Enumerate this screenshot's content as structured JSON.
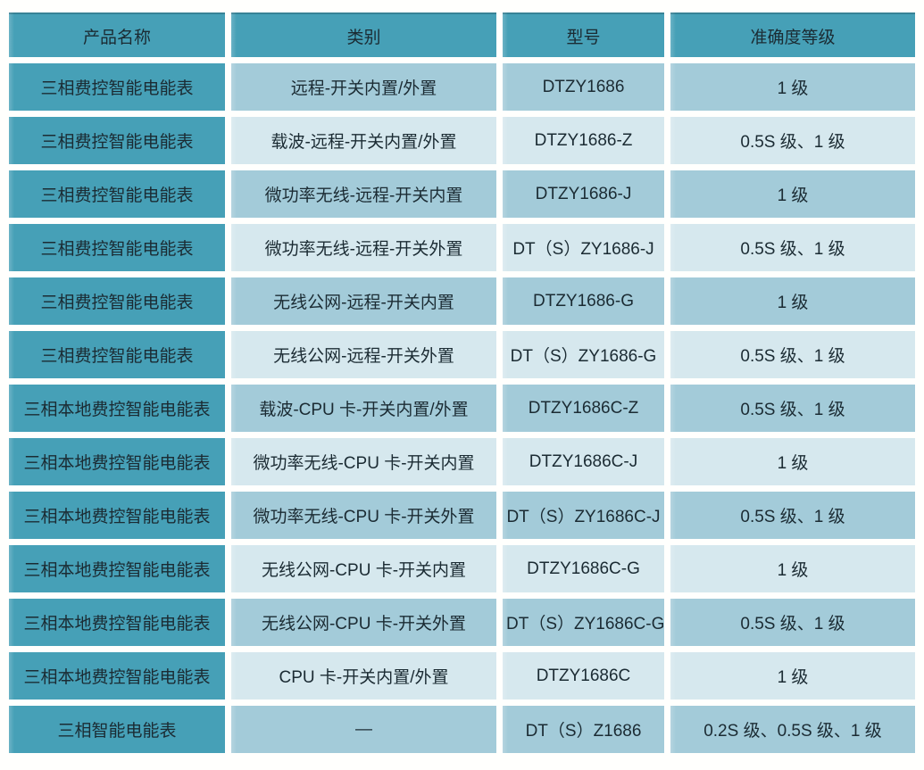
{
  "table": {
    "columns": [
      "产品名称",
      "类别",
      "型号",
      "准确度等级"
    ],
    "colors": {
      "header_bg": "#46a0b7",
      "product_column_bg": "#46a0b7",
      "row_medium_bg": "#a3cbd9",
      "row_light_bg": "#d6e8ee",
      "text": "#1b2b33",
      "gap": "#ffffff"
    },
    "rows": [
      {
        "product": "三相费控智能电能表",
        "category": "远程-开关内置/外置",
        "model": "DTZY1686",
        "accuracy": "1 级",
        "shade": "medium"
      },
      {
        "product": "三相费控智能电能表",
        "category": "载波-远程-开关内置/外置",
        "model": "DTZY1686-Z",
        "accuracy": "0.5S 级、1 级",
        "shade": "light"
      },
      {
        "product": "三相费控智能电能表",
        "category": "微功率无线-远程-开关内置",
        "model": "DTZY1686-J",
        "accuracy": "1 级",
        "shade": "medium"
      },
      {
        "product": "三相费控智能电能表",
        "category": "微功率无线-远程-开关外置",
        "model": "DT（S）ZY1686-J",
        "accuracy": "0.5S 级、1 级",
        "shade": "light"
      },
      {
        "product": "三相费控智能电能表",
        "category": "无线公网-远程-开关内置",
        "model": "DTZY1686-G",
        "accuracy": "1 级",
        "shade": "medium"
      },
      {
        "product": "三相费控智能电能表",
        "category": "无线公网-远程-开关外置",
        "model": "DT（S）ZY1686-G",
        "accuracy": "0.5S 级、1 级",
        "shade": "light"
      },
      {
        "product": "三相本地费控智能电能表",
        "category": "载波-CPU 卡-开关内置/外置",
        "model": "DTZY1686C-Z",
        "accuracy": "0.5S 级、1 级",
        "shade": "medium"
      },
      {
        "product": "三相本地费控智能电能表",
        "category": "微功率无线-CPU 卡-开关内置",
        "model": "DTZY1686C-J",
        "accuracy": "1 级",
        "shade": "light"
      },
      {
        "product": "三相本地费控智能电能表",
        "category": "微功率无线-CPU 卡-开关外置",
        "model": "DT（S）ZY1686C-J",
        "accuracy": "0.5S 级、1 级",
        "shade": "medium"
      },
      {
        "product": "三相本地费控智能电能表",
        "category": "无线公网-CPU 卡-开关内置",
        "model": "DTZY1686C-G",
        "accuracy": "1 级",
        "shade": "light"
      },
      {
        "product": "三相本地费控智能电能表",
        "category": "无线公网-CPU 卡-开关外置",
        "model": "DT（S）ZY1686C-G",
        "accuracy": "0.5S 级、1 级",
        "shade": "medium"
      },
      {
        "product": "三相本地费控智能电能表",
        "category": "CPU 卡-开关内置/外置",
        "model": "DTZY1686C",
        "accuracy": "1 级",
        "shade": "light"
      },
      {
        "product": "三相智能电能表",
        "category": "—",
        "model": "DT（S）Z1686",
        "accuracy": "0.2S 级、0.5S 级、1 级",
        "shade": "medium"
      }
    ]
  }
}
